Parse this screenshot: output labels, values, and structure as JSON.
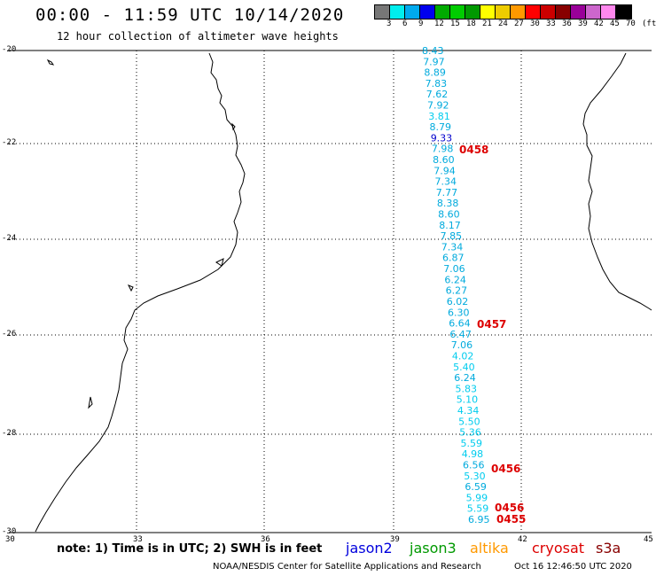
{
  "header": {
    "title": "00:00 - 11:59 UTC 10/14/2020",
    "subtitle": "12 hour collection of altimeter wave heights"
  },
  "legend": {
    "colors": [
      "#777777",
      "#00eeee",
      "#00aaee",
      "#0000ee",
      "#00aa00",
      "#00cc00",
      "#009900",
      "#ffff00",
      "#eecc00",
      "#ff9900",
      "#ff0000",
      "#cc0000",
      "#880000",
      "#990099",
      "#cc66cc",
      "#ff88ee",
      "#000000"
    ],
    "labels": [
      "3",
      "6",
      "9",
      "12",
      "15",
      "18",
      "21",
      "24",
      "27",
      "30",
      "33",
      "36",
      "39",
      "42",
      "45",
      "70",
      "(ft)"
    ]
  },
  "axes": {
    "x_ticks": [
      "30",
      "33",
      "36",
      "39",
      "42",
      "45"
    ],
    "y_ticks": [
      "-20",
      "-22",
      "-24",
      "-26",
      "-28",
      "-30"
    ]
  },
  "track": {
    "color": "#00aadd",
    "values": [
      {
        "v": "8.43",
        "c": "#00aadd"
      },
      {
        "v": "7.97",
        "c": "#00aadd"
      },
      {
        "v": "8.89",
        "c": "#00aadd"
      },
      {
        "v": "7.83",
        "c": "#00aadd"
      },
      {
        "v": "7.62",
        "c": "#00aadd"
      },
      {
        "v": "7.92",
        "c": "#00aadd"
      },
      {
        "v": "3.81",
        "c": "#00ccee"
      },
      {
        "v": "8.79",
        "c": "#00aadd"
      },
      {
        "v": "9.33",
        "c": "#0000cc"
      },
      {
        "v": "7.98",
        "c": "#00aadd"
      },
      {
        "v": "8.60",
        "c": "#00aadd"
      },
      {
        "v": "7.94",
        "c": "#00aadd"
      },
      {
        "v": "7.34",
        "c": "#00aadd"
      },
      {
        "v": "7.77",
        "c": "#00aadd"
      },
      {
        "v": "8.38",
        "c": "#00aadd"
      },
      {
        "v": "8.60",
        "c": "#00aadd"
      },
      {
        "v": "8.17",
        "c": "#00aadd"
      },
      {
        "v": "7.85",
        "c": "#00aadd"
      },
      {
        "v": "7.34",
        "c": "#00aadd"
      },
      {
        "v": "6.87",
        "c": "#00aadd"
      },
      {
        "v": "7.06",
        "c": "#00aadd"
      },
      {
        "v": "6.24",
        "c": "#00aadd"
      },
      {
        "v": "6.27",
        "c": "#00aadd"
      },
      {
        "v": "6.02",
        "c": "#00aadd"
      },
      {
        "v": "6.30",
        "c": "#00aadd"
      },
      {
        "v": "6.64",
        "c": "#00aadd"
      },
      {
        "v": "6.47",
        "c": "#00aadd"
      },
      {
        "v": "7.06",
        "c": "#00aadd"
      },
      {
        "v": "4.02",
        "c": "#00ccee"
      },
      {
        "v": "5.40",
        "c": "#00ccee"
      },
      {
        "v": "6.24",
        "c": "#00aadd"
      },
      {
        "v": "5.83",
        "c": "#00ccee"
      },
      {
        "v": "5.10",
        "c": "#00ccee"
      },
      {
        "v": "4.34",
        "c": "#00ccee"
      },
      {
        "v": "5.50",
        "c": "#00ccee"
      },
      {
        "v": "5.36",
        "c": "#00ccee"
      },
      {
        "v": "5.59",
        "c": "#00ccee"
      },
      {
        "v": "4.98",
        "c": "#00ccee"
      },
      {
        "v": "6.56",
        "c": "#00aadd"
      },
      {
        "v": "5.30",
        "c": "#00ccee"
      },
      {
        "v": "6.59",
        "c": "#00aadd"
      },
      {
        "v": "5.99",
        "c": "#00ccee"
      },
      {
        "v": "5.59",
        "c": "#00ccee"
      },
      {
        "v": "6.95",
        "c": "#00aadd"
      }
    ]
  },
  "pass_labels": [
    {
      "text": "0458",
      "color": "#dd0000"
    },
    {
      "text": "0457",
      "color": "#dd0000"
    },
    {
      "text": "0456",
      "color": "#dd0000"
    },
    {
      "text": "0456",
      "color": "#dd0000"
    },
    {
      "text": "0455",
      "color": "#dd0000"
    }
  ],
  "footer": {
    "note": "note: 1) Time is in UTC; 2) SWH is in feet",
    "satellites": [
      {
        "name": "jason2",
        "color": "#0000dd"
      },
      {
        "name": "jason3",
        "color": "#009900"
      },
      {
        "name": "altika",
        "color": "#ff9900"
      },
      {
        "name": "cryosat",
        "color": "#dd0000"
      },
      {
        "name": "s3a",
        "color": "#880000"
      }
    ],
    "credit": "NOAA/NESDIS Center for Satellite Applications and Research",
    "timestamp": "Oct 16 12:46:50 UTC 2020"
  }
}
